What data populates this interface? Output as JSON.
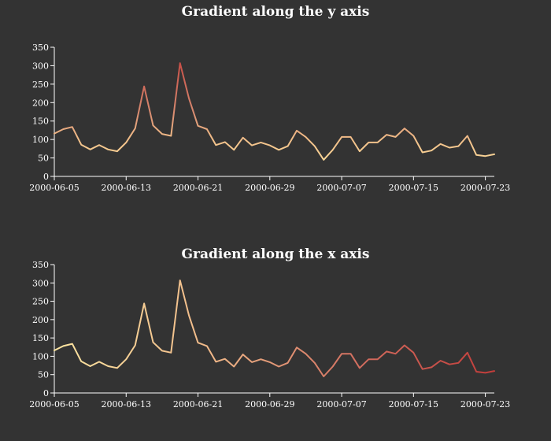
{
  "chart_data": [
    {
      "type": "line",
      "title": "Gradient along the y axis",
      "gradient": "y",
      "gradient_colors": [
        "#fde6a1",
        "#c23c3a"
      ],
      "x_ticks": [
        "2000-06-05",
        "2000-06-13",
        "2000-06-21",
        "2000-06-29",
        "2000-07-07",
        "2000-07-15",
        "2000-07-23"
      ],
      "y_ticks": [
        "0",
        "50",
        "100",
        "150",
        "200",
        "250",
        "300",
        "350"
      ],
      "xlim": [
        "2000-06-05",
        "2000-07-24"
      ],
      "ylim": [
        0,
        350
      ],
      "x": [
        "2000-06-05",
        "2000-06-06",
        "2000-06-07",
        "2000-06-08",
        "2000-06-09",
        "2000-06-10",
        "2000-06-11",
        "2000-06-12",
        "2000-06-13",
        "2000-06-14",
        "2000-06-15",
        "2000-06-16",
        "2000-06-17",
        "2000-06-18",
        "2000-06-19",
        "2000-06-20",
        "2000-06-21",
        "2000-06-22",
        "2000-06-23",
        "2000-06-24",
        "2000-06-25",
        "2000-06-26",
        "2000-06-27",
        "2000-06-28",
        "2000-06-29",
        "2000-06-30",
        "2000-07-01",
        "2000-07-02",
        "2000-07-03",
        "2000-07-04",
        "2000-07-05",
        "2000-07-06",
        "2000-07-07",
        "2000-07-08",
        "2000-07-09",
        "2000-07-10",
        "2000-07-11",
        "2000-07-12",
        "2000-07-13",
        "2000-07-14",
        "2000-07-15",
        "2000-07-16",
        "2000-07-17",
        "2000-07-18",
        "2000-07-19",
        "2000-07-20",
        "2000-07-21",
        "2000-07-22",
        "2000-07-23",
        "2000-07-24"
      ],
      "values": [
        116,
        128,
        134,
        86,
        73,
        85,
        73,
        68,
        92,
        130,
        244,
        138,
        115,
        110,
        307,
        211,
        137,
        128,
        85,
        93,
        72,
        105,
        84,
        92,
        84,
        72,
        82,
        124,
        107,
        82,
        45,
        72,
        107,
        107,
        68,
        92,
        92,
        113,
        107,
        130,
        110,
        65,
        70,
        88,
        78,
        82,
        110,
        58,
        55,
        60
      ]
    },
    {
      "type": "line",
      "title": "Gradient along the x axis",
      "gradient": "x",
      "gradient_colors": [
        "#fde6a1",
        "#c23c3a"
      ],
      "x_ticks": [
        "2000-06-05",
        "2000-06-13",
        "2000-06-21",
        "2000-06-29",
        "2000-07-07",
        "2000-07-15",
        "2000-07-23"
      ],
      "y_ticks": [
        "0",
        "50",
        "100",
        "150",
        "200",
        "250",
        "300",
        "350"
      ],
      "xlim": [
        "2000-06-05",
        "2000-07-24"
      ],
      "ylim": [
        0,
        350
      ],
      "x": [
        "2000-06-05",
        "2000-06-06",
        "2000-06-07",
        "2000-06-08",
        "2000-06-09",
        "2000-06-10",
        "2000-06-11",
        "2000-06-12",
        "2000-06-13",
        "2000-06-14",
        "2000-06-15",
        "2000-06-16",
        "2000-06-17",
        "2000-06-18",
        "2000-06-19",
        "2000-06-20",
        "2000-06-21",
        "2000-06-22",
        "2000-06-23",
        "2000-06-24",
        "2000-06-25",
        "2000-06-26",
        "2000-06-27",
        "2000-06-28",
        "2000-06-29",
        "2000-06-30",
        "2000-07-01",
        "2000-07-02",
        "2000-07-03",
        "2000-07-04",
        "2000-07-05",
        "2000-07-06",
        "2000-07-07",
        "2000-07-08",
        "2000-07-09",
        "2000-07-10",
        "2000-07-11",
        "2000-07-12",
        "2000-07-13",
        "2000-07-14",
        "2000-07-15",
        "2000-07-16",
        "2000-07-17",
        "2000-07-18",
        "2000-07-19",
        "2000-07-20",
        "2000-07-21",
        "2000-07-22",
        "2000-07-23",
        "2000-07-24"
      ],
      "values": [
        116,
        128,
        134,
        86,
        73,
        85,
        73,
        68,
        92,
        130,
        244,
        138,
        115,
        110,
        307,
        211,
        137,
        128,
        85,
        93,
        72,
        105,
        84,
        92,
        84,
        72,
        82,
        124,
        107,
        82,
        45,
        72,
        107,
        107,
        68,
        92,
        92,
        113,
        107,
        130,
        110,
        65,
        70,
        88,
        78,
        82,
        110,
        58,
        55,
        60
      ]
    }
  ]
}
